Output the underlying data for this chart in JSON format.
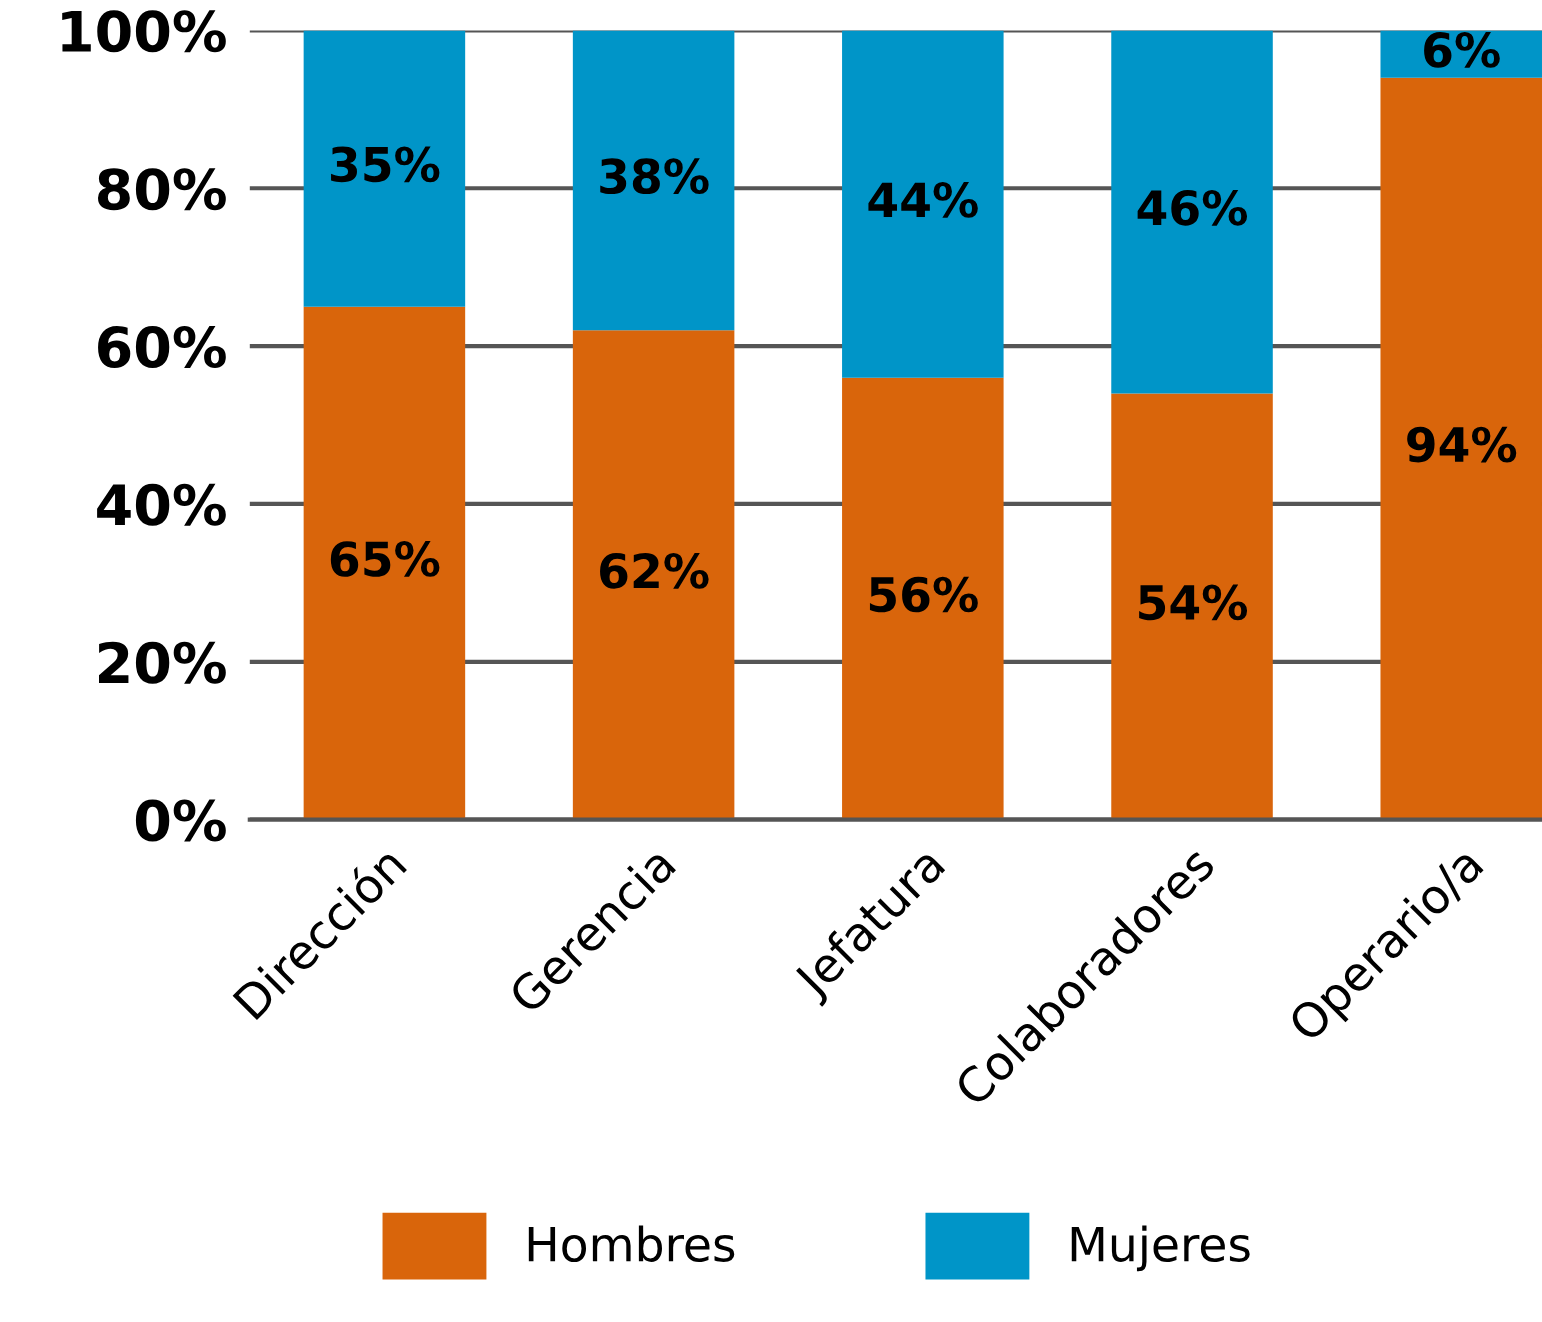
{
  "chart_data": {
    "type": "bar",
    "stacked": true,
    "categories": [
      "Dirección",
      "Gerencia",
      "Jefatura",
      "Colaboradores",
      "Operario/a"
    ],
    "series": [
      {
        "name": "Hombres",
        "color": "#d9650b",
        "values": [
          65,
          62,
          56,
          54,
          94
        ],
        "value_labels": [
          "65%",
          "62%",
          "56%",
          "54%",
          "94%"
        ]
      },
      {
        "name": "Mujeres",
        "color": "#0095c8",
        "values": [
          35,
          38,
          44,
          46,
          6
        ],
        "value_labels": [
          "35%",
          "38%",
          "44%",
          "46%",
          "6%"
        ]
      }
    ],
    "ylim": [
      0,
      100
    ],
    "yticks": [
      {
        "value": 0,
        "label": "0%"
      },
      {
        "value": 20,
        "label": "20%"
      },
      {
        "value": 40,
        "label": "40%"
      },
      {
        "value": 60,
        "label": "60%"
      },
      {
        "value": 80,
        "label": "80%"
      },
      {
        "value": 100,
        "label": "100%"
      }
    ],
    "grid": "y",
    "legend": "bottom"
  }
}
